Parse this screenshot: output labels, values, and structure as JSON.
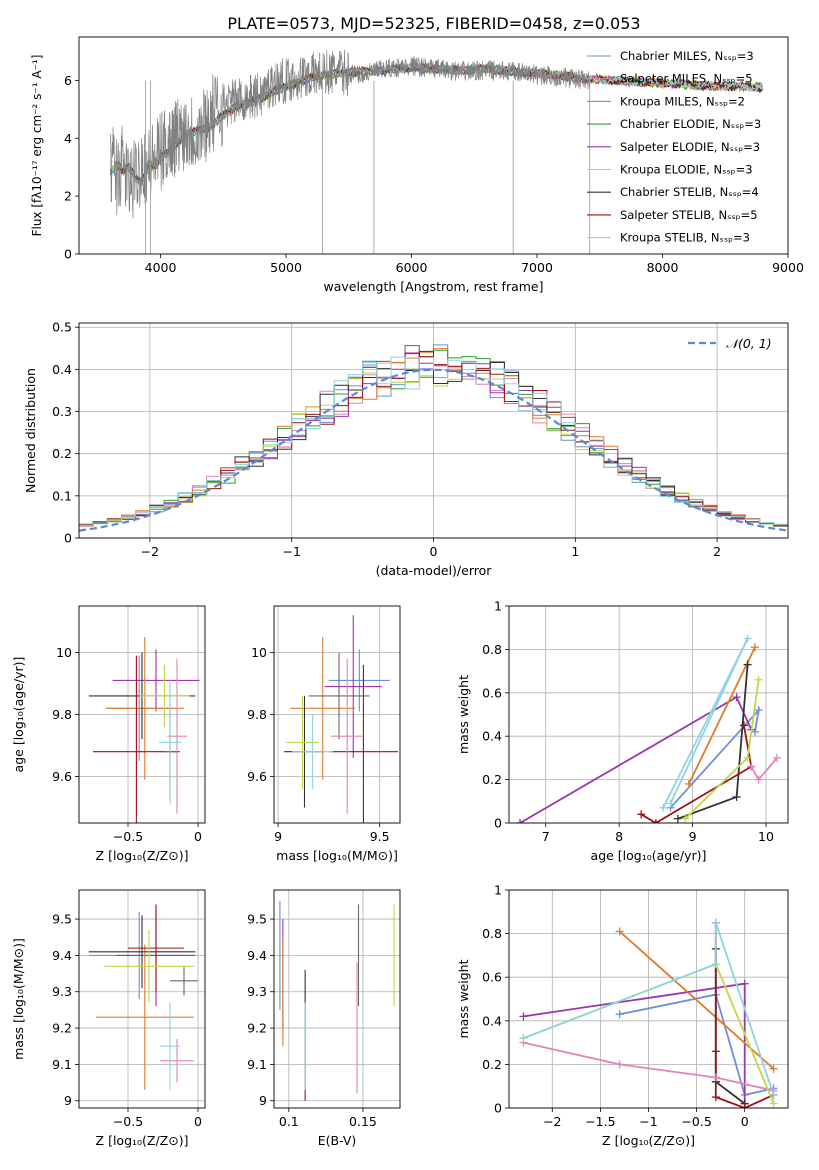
{
  "title": "PLATE=0573, MJD=52325, FIBERID=0458, z=0.053",
  "colors": [
    "#6d8fd6",
    "#9a35b0",
    "#df7b2a",
    "#333333",
    "#9a1216",
    "#6a6a6a",
    "#df84b9",
    "#c1d64a",
    "#8dd3e0",
    "#2aa02b"
  ],
  "chart_data": [
    {
      "id": "spectrum",
      "type": "line",
      "xlabel": "wavelength [Angstrom, rest frame]",
      "ylabel": "Flux [fλ10⁻¹⁷ erg cm⁻² s⁻¹ A⁻¹]",
      "xlim": [
        3350,
        9000
      ],
      "ylim": [
        0,
        7.5
      ],
      "xticks": [
        4000,
        5000,
        6000,
        7000,
        8000,
        9000
      ],
      "yticks": [
        0,
        2,
        4,
        6
      ],
      "grid": false,
      "legend": "top-right",
      "data_wavelength": [
        3600,
        3620,
        3650,
        3700,
        3750,
        3800,
        3850,
        3900,
        3950,
        4000,
        4100,
        4200,
        4300,
        4400,
        4500,
        4600,
        4700,
        4800,
        4900,
        5000,
        5200,
        5400,
        5600,
        5800,
        6000,
        6200,
        6400,
        6600,
        6800,
        7000,
        7200,
        7400
      ],
      "data_flux": [
        2.9,
        3.2,
        2.7,
        3.1,
        2.4,
        2.6,
        3.2,
        3.0,
        3.3,
        3.5,
        4.0,
        4.3,
        4.2,
        4.8,
        5.1,
        5.3,
        5.4,
        5.5,
        5.9,
        6.0,
        6.2,
        6.3,
        6.2,
        6.4,
        6.5,
        6.4,
        6.3,
        6.35,
        6.3,
        6.2,
        6.1,
        6.0
      ],
      "model_wavelength": [
        3600,
        3650,
        3700,
        3750,
        3800,
        3850,
        3900,
        3950,
        4000,
        4100,
        4200,
        4300,
        4400,
        4500,
        4600,
        4700,
        4800,
        4900,
        5000,
        5200,
        5400,
        5600,
        5800,
        6000,
        6200,
        6400,
        6600,
        6800,
        7000,
        7200,
        7400,
        7600,
        7800,
        8000,
        8200,
        8400,
        8600,
        8800
      ],
      "model_flux": [
        2.8,
        3.1,
        2.9,
        3.0,
        2.6,
        2.5,
        3.1,
        3.0,
        3.3,
        3.7,
        4.1,
        4.3,
        4.4,
        4.8,
        5.1,
        5.2,
        5.4,
        5.6,
        5.8,
        6.1,
        6.25,
        6.3,
        6.35,
        6.45,
        6.4,
        6.35,
        6.4,
        6.3,
        6.25,
        6.15,
        6.05,
        6.0,
        5.95,
        5.9,
        5.85,
        5.8,
        5.8,
        5.75
      ],
      "series_names": [
        "Chabrier MILES, Nₛₛₚ=3",
        "Salpeter MILES, Nₛₛₚ=5",
        "Kroupa MILES, Nₛₛₚ=2",
        "Chabrier ELODIE, Nₛₛₚ=3",
        "Salpeter ELODIE, Nₛₛₚ=3",
        "Kroupa ELODIE, Nₛₛₚ=3",
        "Chabrier STELIB, Nₛₛₚ=4",
        "Salpeter STELIB, Nₛₛₚ=5",
        "Kroupa STELIB, Nₛₛₚ=3"
      ],
      "series_colors": [
        "#6d8fd6",
        "#df84b9",
        "#df7b2a",
        "#2aa02b",
        "#9a35b0",
        "#c1d64a",
        "#333333",
        "#9a1216",
        "#8dd3e0"
      ]
    },
    {
      "id": "residuals",
      "type": "histogram",
      "xlabel": "(data-model)/error",
      "ylabel": "Normed distribution",
      "xlim": [
        -2.5,
        2.5
      ],
      "ylim": [
        0,
        0.51
      ],
      "xticks": [
        -2,
        -1,
        0,
        1,
        2
      ],
      "yticks": [
        0.0,
        0.1,
        0.2,
        0.3,
        0.4,
        0.5
      ],
      "grid": true,
      "legend": "top-right",
      "legend_label": "𝒩(0, 1)",
      "bin_width": 0.1
    },
    {
      "id": "age_vs_Z",
      "type": "errorbar",
      "xlabel": "Z [log₁₀(Z/Z⊙)]",
      "ylabel": "age  [log₁₀(age/yr)]",
      "xlim": [
        -0.85,
        0.05
      ],
      "ylim": [
        9.45,
        10.15
      ],
      "xticks": [
        -0.5,
        0.0
      ],
      "yticks": [
        9.6,
        9.8,
        10.0
      ],
      "grid": true,
      "points": [
        {
          "x": -0.42,
          "y": 9.82,
          "xerr": 0.22,
          "yerr": 0.17
        },
        {
          "x": -0.3,
          "y": 9.91,
          "xerr": 0.31,
          "yerr": 0.1
        },
        {
          "x": -0.38,
          "y": 9.82,
          "xerr": 0.28,
          "yerr": 0.23
        },
        {
          "x": -0.4,
          "y": 9.86,
          "xerr": 0.38,
          "yerr": 0.14
        },
        {
          "x": -0.44,
          "y": 9.68,
          "xerr": 0.31,
          "yerr": 0.31
        },
        {
          "x": -0.2,
          "y": 9.68,
          "xerr": 0.05,
          "yerr": 0.15
        },
        {
          "x": -0.15,
          "y": 9.73,
          "xerr": 0.07,
          "yerr": 0.25
        },
        {
          "x": -0.24,
          "y": 9.86,
          "xerr": 0.18,
          "yerr": 0.1
        },
        {
          "x": -0.2,
          "y": 9.71,
          "xerr": 0.08,
          "yerr": 0.2
        }
      ]
    },
    {
      "id": "age_vs_mass",
      "type": "errorbar",
      "xlabel": "mass [log₁₀(M/M⊙)]",
      "ylabel": "",
      "xlim": [
        8.98,
        9.6
      ],
      "ylim": [
        9.45,
        10.15
      ],
      "xticks": [
        9.0,
        9.5
      ],
      "yticks": [
        9.6,
        9.8,
        10.0
      ],
      "grid": true,
      "points": [
        {
          "x": 9.4,
          "y": 9.91,
          "xerr": 0.15,
          "yerr": 0.1
        },
        {
          "x": 9.37,
          "y": 9.89,
          "xerr": 0.14,
          "yerr": 0.23
        },
        {
          "x": 9.22,
          "y": 9.82,
          "xerr": 0.16,
          "yerr": 0.23
        },
        {
          "x": 9.13,
          "y": 9.68,
          "xerr": 0.1,
          "yerr": 0.18
        },
        {
          "x": 9.42,
          "y": 9.68,
          "xerr": 0.17,
          "yerr": 0.28
        },
        {
          "x": 9.3,
          "y": 9.86,
          "xerr": 0.15,
          "yerr": 0.14
        },
        {
          "x": 9.34,
          "y": 9.73,
          "xerr": 0.08,
          "yerr": 0.25
        },
        {
          "x": 9.12,
          "y": 9.71,
          "xerr": 0.08,
          "yerr": 0.15
        },
        {
          "x": 9.17,
          "y": 9.68,
          "xerr": 0.1,
          "yerr": 0.12
        }
      ]
    },
    {
      "id": "weight_vs_age",
      "type": "line",
      "xlabel": "age  [log₁₀(age/yr)]",
      "ylabel": "mass weight",
      "xlim": [
        6.5,
        10.3
      ],
      "ylim": [
        0,
        1.0
      ],
      "xticks": [
        7,
        8,
        9,
        10
      ],
      "yticks": [
        0.0,
        0.2,
        0.4,
        0.6,
        0.8,
        1.0
      ],
      "grid": true,
      "series": [
        {
          "color": "#6d8fd6",
          "x": [
            8.7,
            9.9,
            9.85
          ],
          "y": [
            0.07,
            0.52,
            0.42
          ]
        },
        {
          "color": "#9a35b0",
          "x": [
            6.65,
            9.6,
            9.8
          ],
          "y": [
            0.0,
            0.58,
            0.43
          ]
        },
        {
          "color": "#df7b2a",
          "x": [
            8.95,
            9.85
          ],
          "y": [
            0.18,
            0.81
          ]
        },
        {
          "color": "#333333",
          "x": [
            8.8,
            9.6,
            9.75
          ],
          "y": [
            0.02,
            0.12,
            0.73
          ]
        },
        {
          "color": "#9a1216",
          "x": [
            8.3,
            8.5,
            9.8,
            9.7
          ],
          "y": [
            0.04,
            0.0,
            0.26,
            0.45
          ]
        },
        {
          "color": "#df84b9",
          "x": [
            9.8,
            9.9,
            10.15
          ],
          "y": [
            0.26,
            0.2,
            0.3
          ]
        },
        {
          "color": "#c1d64a",
          "x": [
            8.9,
            9.75,
            9.9
          ],
          "y": [
            0.02,
            0.3,
            0.66
          ]
        },
        {
          "color": "#8dd3e0",
          "x": [
            8.6,
            9.75,
            8.7
          ],
          "y": [
            0.07,
            0.85,
            0.09
          ]
        }
      ]
    },
    {
      "id": "mass_vs_Z",
      "type": "errorbar",
      "xlabel": "Z [log₁₀(Z/Z⊙)]",
      "ylabel": "mass [log₁₀(M/M⊙)]",
      "xlim": [
        -0.85,
        0.05
      ],
      "ylim": [
        8.98,
        9.58
      ],
      "xticks": [
        -0.5,
        0.0
      ],
      "yticks": [
        9.0,
        9.1,
        9.2,
        9.3,
        9.4,
        9.5
      ],
      "grid": true,
      "points": [
        {
          "x": -0.42,
          "y": 9.4,
          "xerr": 0.36,
          "yerr": 0.12
        },
        {
          "x": -0.3,
          "y": 9.4,
          "xerr": 0.28,
          "yerr": 0.14
        },
        {
          "x": -0.38,
          "y": 9.23,
          "xerr": 0.35,
          "yerr": 0.2
        },
        {
          "x": -0.4,
          "y": 9.41,
          "xerr": 0.38,
          "yerr": 0.1
        },
        {
          "x": -0.3,
          "y": 9.42,
          "xerr": 0.2,
          "yerr": 0.12
        },
        {
          "x": -0.1,
          "y": 9.33,
          "xerr": 0.1,
          "yerr": 0.04
        },
        {
          "x": -0.15,
          "y": 9.11,
          "xerr": 0.12,
          "yerr": 0.06
        },
        {
          "x": -0.35,
          "y": 9.37,
          "xerr": 0.32,
          "yerr": 0.1
        },
        {
          "x": -0.2,
          "y": 9.15,
          "xerr": 0.07,
          "yerr": 0.12
        }
      ]
    },
    {
      "id": "mass_vs_ebv",
      "type": "errorbar",
      "xlabel": "E(B-V)",
      "ylabel": "",
      "xlim": [
        0.09,
        0.175
      ],
      "ylim": [
        8.98,
        9.58
      ],
      "xticks": [
        0.1,
        0.15
      ],
      "yticks": [
        9.0,
        9.1,
        9.2,
        9.3,
        9.4,
        9.5
      ],
      "grid": true,
      "points": [
        {
          "x": 0.094,
          "y": 9.4,
          "xerr": 0.0,
          "yerr": 0.15
        },
        {
          "x": 0.096,
          "y": 9.35,
          "xerr": 0.0,
          "yerr": 0.15
        },
        {
          "x": 0.096,
          "y": 9.3,
          "xerr": 0.0,
          "yerr": 0.15
        },
        {
          "x": 0.111,
          "y": 9.28,
          "xerr": 0.0,
          "yerr": 0.08
        },
        {
          "x": 0.111,
          "y": 9.1,
          "xerr": 0.0,
          "yerr": 0.1
        },
        {
          "x": 0.147,
          "y": 9.4,
          "xerr": 0.0,
          "yerr": 0.14
        },
        {
          "x": 0.146,
          "y": 9.2,
          "xerr": 0.0,
          "yerr": 0.18
        },
        {
          "x": 0.171,
          "y": 9.4,
          "xerr": 0.0,
          "yerr": 0.14
        },
        {
          "x": 0.111,
          "y": 9.15,
          "xerr": 0.0,
          "yerr": 0.12
        }
      ]
    },
    {
      "id": "weight_vs_Z",
      "type": "line",
      "xlabel": "Z [log₁₀(Z/Z⊙)]",
      "ylabel": "mass weight",
      "xlim": [
        -2.45,
        0.45
      ],
      "ylim": [
        0,
        1.0
      ],
      "xticks": [
        -2.0,
        -1.5,
        -1.0,
        -0.5,
        0.0
      ],
      "yticks": [
        0.0,
        0.2,
        0.4,
        0.6,
        0.8,
        1.0
      ],
      "grid": true,
      "series": [
        {
          "color": "#6d8fd6",
          "x": [
            -1.3,
            -0.3,
            0.0,
            0.3
          ],
          "y": [
            0.43,
            0.52,
            0.06,
            0.09
          ]
        },
        {
          "color": "#9a35b0",
          "x": [
            -2.3,
            0.0,
            0.0
          ],
          "y": [
            0.42,
            0.57,
            0.02
          ]
        },
        {
          "color": "#df7b2a",
          "x": [
            -1.3,
            0.3
          ],
          "y": [
            0.81,
            0.18
          ]
        },
        {
          "color": "#333333",
          "x": [
            -0.3,
            -0.3,
            -0.3,
            0.0
          ],
          "y": [
            0.73,
            0.12,
            0.12,
            0.02
          ]
        },
        {
          "color": "#9a1216",
          "x": [
            -0.3,
            -0.3,
            -0.3,
            0.0,
            0.3
          ],
          "y": [
            0.85,
            0.26,
            0.05,
            0.0,
            0.06
          ]
        },
        {
          "color": "#df84b9",
          "x": [
            -2.3,
            -1.3,
            -0.3,
            0.3
          ],
          "y": [
            0.3,
            0.2,
            0.14,
            0.08
          ]
        },
        {
          "color": "#c1d64a",
          "x": [
            -2.3,
            -0.3,
            0.3
          ],
          "y": [
            0.32,
            0.66,
            0.02
          ]
        },
        {
          "color": "#8dd3e0",
          "x": [
            -2.3,
            -0.3,
            -0.3,
            0.3
          ],
          "y": [
            0.32,
            0.66,
            0.85,
            0.06
          ]
        }
      ]
    }
  ]
}
